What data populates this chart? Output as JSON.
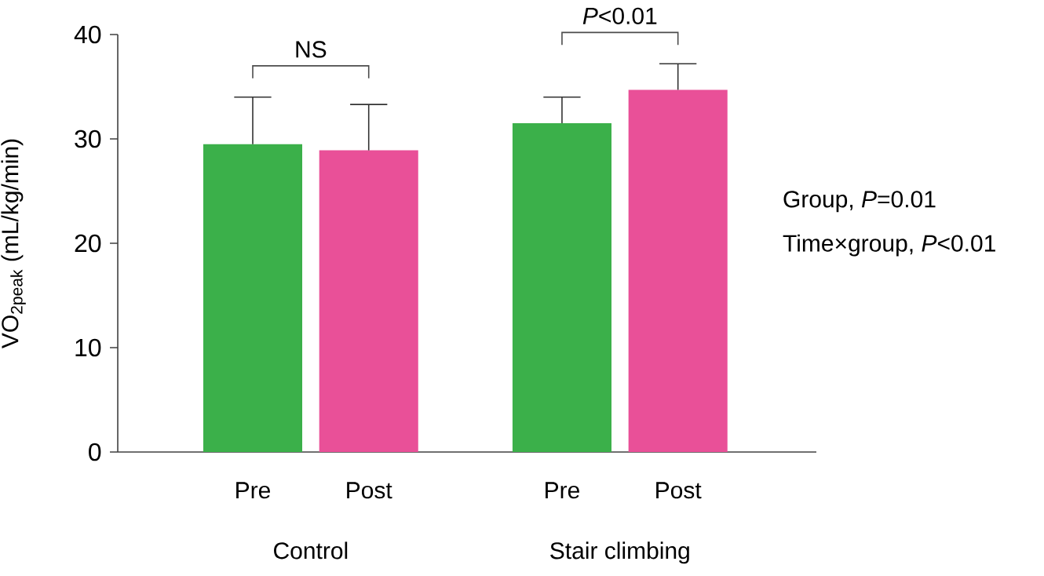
{
  "chart_data": {
    "type": "bar",
    "ylabel": "VO$_{2peak}$ (mL/kg/min)",
    "categories": [
      "Control",
      "Stair climbing"
    ],
    "series": [
      {
        "name": "Pre",
        "color": "#3bb04a",
        "values": [
          29.5,
          31.5
        ],
        "errors": [
          [
            29.5,
            34.0
          ],
          [
            31.5,
            34.0
          ]
        ]
      },
      {
        "name": "Post",
        "color": "#e95098",
        "values": [
          28.9,
          34.7
        ],
        "errors": [
          [
            28.9,
            33.3
          ],
          [
            34.7,
            37.2
          ]
        ]
      }
    ],
    "ylim": [
      0,
      40
    ],
    "yticks": [
      0,
      10,
      20,
      30,
      40
    ],
    "grid": false,
    "legend": false,
    "annotations": [
      "NS",
      "*P*<0.01",
      "Group, *P*=0.01",
      "Time×group, *P*<0.01"
    ]
  }
}
